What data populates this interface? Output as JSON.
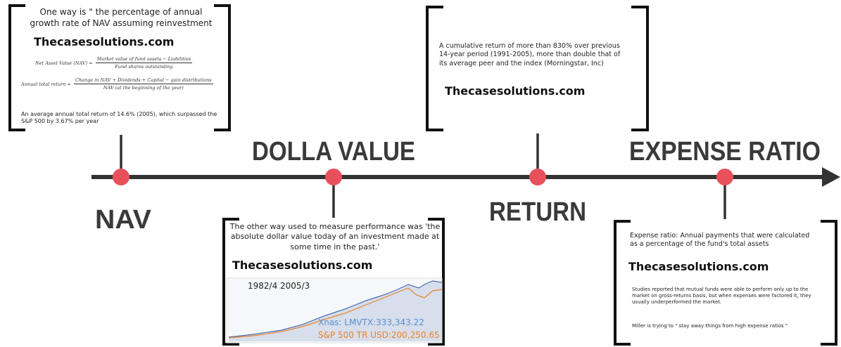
{
  "milestones": [
    {
      "label": "NAV"
    },
    {
      "label": "DOLLA VALUE"
    },
    {
      "label": "RETURN"
    },
    {
      "label": "EXPENSE RATIO"
    }
  ],
  "boxes": [
    {
      "text": "One way is \" the percentage of annual growth rate of NAV assuming reinvestment",
      "brand": "Thecasesolutions.com",
      "formulas": [
        {
          "lhs": "Net Asset Value (NAV) =",
          "numerator": "Market value of fund assets − Liabilities",
          "denominator": "Fund shares outstanding"
        },
        {
          "lhs": "Annual total return =",
          "numerator": "Change in NAV + Dividends + Capital − gain distributions",
          "denominator": "NAV (at the beginning of the year)"
        }
      ],
      "note": "An average annual total return of 14.6% (2005), which surpassed the S&P 500 by 3.67% per year"
    },
    {
      "text": "The other way used to measure performance was 'the absolute dollar value today of an investment made at some time in the past.'",
      "brand": "Thecasesolutions.com",
      "chart_period": "1982/4 2005/3",
      "chart_series": [
        "Xnas: LMVTX:333,343.22",
        "S&P 500 TR USD:200,250.65"
      ]
    },
    {
      "text": "A cumulative return of more than 830% over previous 14-year period (1991-2005), more than double that of its average peer and the index (Morningstar, Inc)",
      "brand": "Thecasesolutions.com"
    },
    {
      "text": "Expense ratio: Annual payments that were calculated as a percentage of the fund's total assets",
      "brand": "Thecasesolutions.com",
      "details": [
        "Studies reported that mutual funds were able to perform only up to the market on gross-returns basis, but when expenses were factored it, they usually underperformed the market.",
        "Miller is trying to \" stay away things from high expense ratios \""
      ]
    }
  ]
}
